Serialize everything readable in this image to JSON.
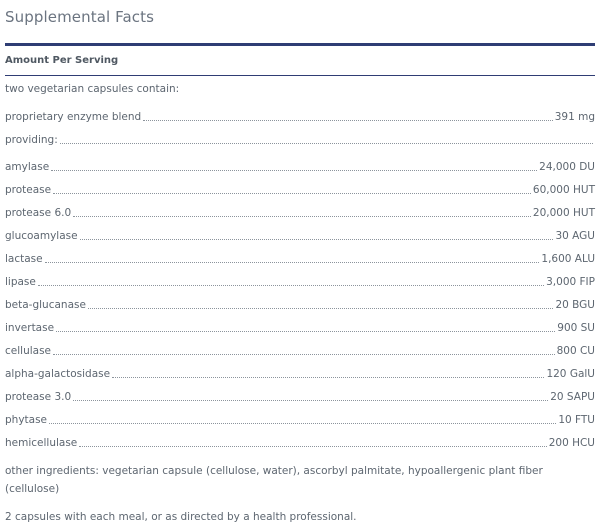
{
  "title": "Supplemental Facts",
  "amount_header": "Amount Per Serving",
  "intro": "two vegetarian capsules contain:",
  "blend": {
    "label": "proprietary enzyme blend",
    "value": "391 mg"
  },
  "providing": {
    "label": "providing:",
    "value": ""
  },
  "enzymes": [
    {
      "label": "amylase",
      "value": "24,000 DU"
    },
    {
      "label": "protease",
      "value": "60,000 HUT"
    },
    {
      "label": "protease 6.0",
      "value": "20,000 HUT"
    },
    {
      "label": "glucoamylase",
      "value": "30 AGU"
    },
    {
      "label": "lactase",
      "value": "1,600 ALU"
    },
    {
      "label": "lipase",
      "value": "3,000 FIP"
    },
    {
      "label": "beta-glucanase",
      "value": "20 BGU"
    },
    {
      "label": "invertase",
      "value": "900 SU"
    },
    {
      "label": "cellulase",
      "value": "800 CU"
    },
    {
      "label": "alpha-galactosidase",
      "value": "120 GalU"
    },
    {
      "label": "protease 3.0",
      "value": "20 SAPU"
    },
    {
      "label": "phytase",
      "value": "10 FTU"
    },
    {
      "label": "hemicellulase",
      "value": "200 HCU"
    }
  ],
  "other_ingredients": "other ingredients: vegetarian capsule (cellulose, water), ascorbyl palmitate, hypoallergenic plant fiber (cellulose)",
  "directions": "2 capsules with each meal, or as directed by a health professional."
}
